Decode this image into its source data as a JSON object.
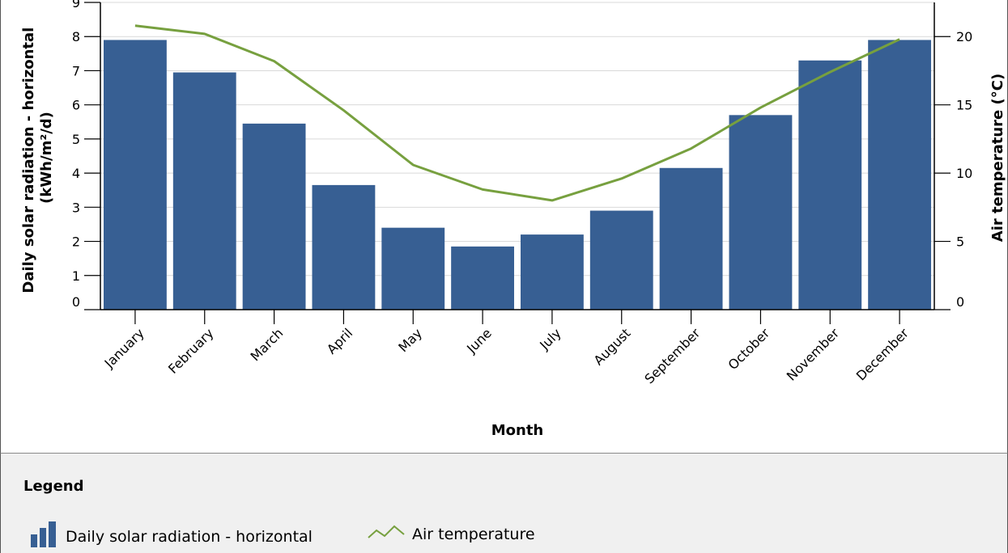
{
  "chart_data": {
    "type": "bar",
    "categories": [
      "January",
      "February",
      "March",
      "April",
      "May",
      "June",
      "July",
      "August",
      "September",
      "October",
      "November",
      "December"
    ],
    "series": [
      {
        "name": "Daily solar radiation - horizontal",
        "type": "bar",
        "axis": "left",
        "values": [
          7.9,
          6.95,
          5.45,
          3.65,
          2.4,
          1.85,
          2.2,
          2.9,
          4.15,
          5.7,
          7.3,
          7.9
        ]
      },
      {
        "name": "Air temperature",
        "type": "line",
        "axis": "right",
        "values": [
          20.8,
          20.2,
          18.2,
          14.6,
          10.6,
          8.8,
          8.0,
          9.6,
          11.8,
          14.8,
          17.4,
          19.8
        ]
      }
    ],
    "xlabel": "Month",
    "ylabel_left": [
      "Daily solar radiation - horizontal",
      "(kWh/m²/d)"
    ],
    "ylabel_right": "Air temperature (°C)",
    "ylim_left": [
      0,
      9
    ],
    "ylim_right": [
      0,
      22.5
    ],
    "yticks_left": [
      0,
      1,
      2,
      3,
      4,
      5,
      6,
      7,
      8,
      9
    ],
    "yticks_right": [
      0,
      5,
      10,
      15,
      20
    ],
    "grid": "horizontal",
    "colors": {
      "bar": "#375f93",
      "line": "#77a03f",
      "grid": "#d9d9d9"
    }
  },
  "legend": {
    "title": "Legend",
    "items": [
      {
        "label": "Daily solar radiation - horizontal",
        "icon": "bar-chart-icon"
      },
      {
        "label": "Air temperature",
        "icon": "line-chart-icon"
      }
    ]
  }
}
